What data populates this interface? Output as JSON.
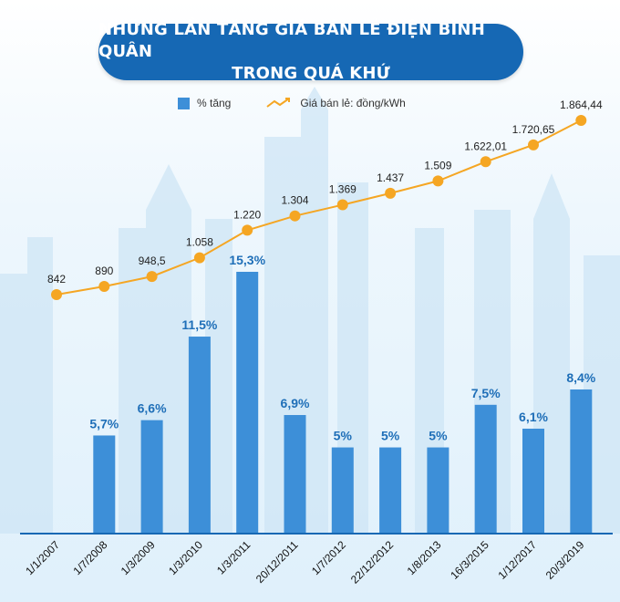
{
  "title": {
    "line1": "NHỮNG LẦN TĂNG GIÁ BÁN LẺ ĐIỆN BÌNH QUÂN",
    "line2": "TRONG QUÁ KHỨ"
  },
  "legend": {
    "bar_label": "% tăng",
    "line_label": "Giá bán lẻ: đồng/kWh"
  },
  "colors": {
    "bar": "#3d8fd8",
    "bar_label": "#1f6fb8",
    "line": "#f5a623",
    "axis": "#1668b4",
    "title_bg": "#1668b4"
  },
  "chart_data": {
    "type": "bar+line",
    "categories": [
      "1/1/2007",
      "1/7/2008",
      "1/3/2009",
      "1/3/2010",
      "1/3/2011",
      "20/12/2011",
      "1/7/2012",
      "22/12/2012",
      "1/8/2013",
      "16/3/2015",
      "1/12/2017",
      "20/3/2019"
    ],
    "series": [
      {
        "name": "% tăng",
        "type": "bar",
        "values": [
          null,
          5.7,
          6.6,
          11.5,
          15.3,
          6.9,
          5,
          5,
          5,
          7.5,
          6.1,
          8.4
        ],
        "labels": [
          "",
          "5,7%",
          "6,6%",
          "11,5%",
          "15,3%",
          "6,9%",
          "5%",
          "5%",
          "5%",
          "7,5%",
          "6,1%",
          "8,4%"
        ]
      },
      {
        "name": "Giá bán lẻ: đồng/kWh",
        "type": "line",
        "values": [
          842,
          890,
          948.5,
          1058,
          1220,
          1304,
          1369,
          1437,
          1509,
          1622.01,
          1720.65,
          1864.44
        ],
        "labels": [
          "842",
          "890",
          "948,5",
          "1.058",
          "1.220",
          "1.304",
          "1.369",
          "1.437",
          "1.509",
          "1.622,01",
          "1.720,65",
          "1.864,44"
        ]
      }
    ]
  }
}
